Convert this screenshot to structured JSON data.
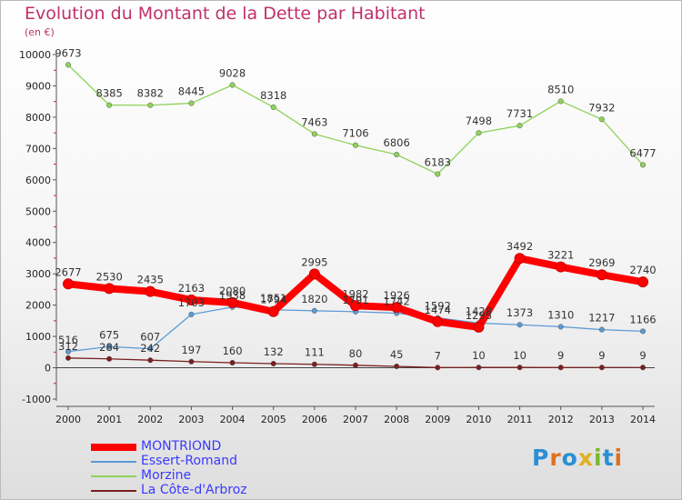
{
  "title": "Evolution du Montant de la Dette par Habitant",
  "subtitle": "(en €)",
  "logo_text": "Proxiti",
  "chart_data": {
    "type": "line",
    "title": "Evolution du Montant de la Dette par Habitant",
    "ylabel": "(en €)",
    "xlabel": "",
    "x": [
      "2000",
      "2001",
      "2002",
      "2003",
      "2004",
      "2005",
      "2006",
      "2007",
      "2008",
      "2009",
      "2010",
      "2011",
      "2012",
      "2013",
      "2014"
    ],
    "ylim": [
      -1000,
      10000
    ],
    "yticks": [
      -1000,
      0,
      1000,
      2000,
      3000,
      4000,
      5000,
      6000,
      7000,
      8000,
      9000,
      10000
    ],
    "grid": false,
    "legend": "bottom-left",
    "series": [
      {
        "name": "MONTRIOND",
        "color": "#ff0000",
        "values": [
          2677,
          2530,
          2435,
          2163,
          2080,
          1794,
          2995,
          1982,
          1926,
          1474,
          1295,
          3492,
          3221,
          2969,
          2740
        ]
      },
      {
        "name": "Essert-Romand",
        "color": "#5a9ad6",
        "values": [
          516,
          675,
          607,
          1703,
          1938,
          1851,
          1820,
          1791,
          1742,
          1592,
          1428,
          1373,
          1310,
          1217,
          1166
        ]
      },
      {
        "name": "Morzine",
        "color": "#8ed257",
        "values": [
          9673,
          8385,
          8382,
          8445,
          9028,
          8318,
          7463,
          7106,
          6806,
          6183,
          7498,
          7731,
          8510,
          7932,
          6477
        ]
      },
      {
        "name": "La Côte-d'Arbroz",
        "color": "#7a1f1f",
        "values": [
          312,
          284,
          242,
          197,
          160,
          132,
          111,
          80,
          45,
          7,
          10,
          10,
          9,
          9,
          9
        ]
      }
    ]
  }
}
